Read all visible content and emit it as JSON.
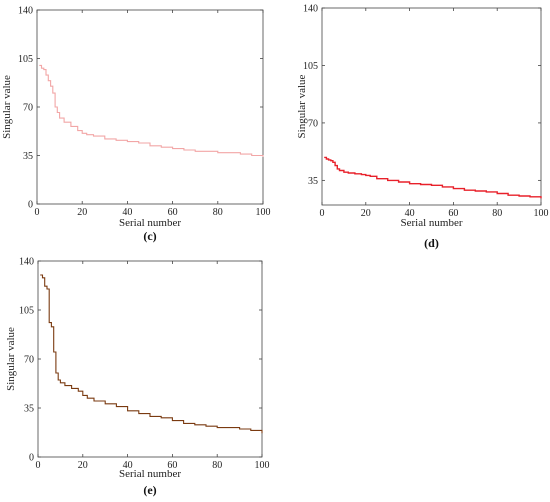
{
  "chart_data": [
    {
      "type": "line",
      "panel_label": "(c)",
      "xlabel": "Serial number",
      "ylabel": "Singular value",
      "xlim": [
        0,
        100
      ],
      "ylim": [
        0,
        140
      ],
      "xticks": [
        0,
        20,
        40,
        60,
        80,
        100
      ],
      "yticks": [
        0,
        35,
        70,
        105,
        140
      ],
      "color": "#f2a6a6",
      "grid": false,
      "series": [
        {
          "x": [
            1,
            2,
            3,
            4,
            5,
            6,
            7,
            8,
            9,
            10,
            12,
            15,
            18,
            20,
            22,
            25,
            30,
            35,
            40,
            45,
            50,
            55,
            60,
            65,
            70,
            75,
            80,
            85,
            90,
            95,
            100
          ],
          "y": [
            100,
            98,
            97,
            93,
            89,
            85,
            80,
            70,
            66,
            62,
            59,
            56,
            53,
            51,
            50,
            49,
            47,
            46,
            45,
            44,
            42,
            41,
            40,
            39,
            38,
            38,
            37,
            37,
            36,
            35,
            34
          ]
        }
      ]
    },
    {
      "type": "line",
      "panel_label": "(d)",
      "xlabel": "Serial number",
      "ylabel": "Singular value",
      "xlim": [
        0,
        100
      ],
      "ylim": [
        20,
        140
      ],
      "xticks": [
        0,
        20,
        40,
        60,
        80,
        100
      ],
      "yticks": [
        35,
        70,
        105,
        140
      ],
      "color": "#e8202a",
      "grid": false,
      "series": [
        {
          "x": [
            1,
            2,
            3,
            4,
            5,
            6,
            7,
            8,
            10,
            12,
            15,
            18,
            20,
            22,
            25,
            30,
            35,
            40,
            45,
            50,
            55,
            60,
            65,
            70,
            75,
            80,
            85,
            90,
            95,
            100
          ],
          "y": [
            49,
            48,
            47.5,
            47,
            46,
            44,
            42,
            41,
            40,
            39.5,
            39,
            38.5,
            38,
            37.5,
            36,
            35,
            34,
            33,
            32.5,
            32,
            31,
            30,
            29,
            28.5,
            28,
            27,
            26,
            25.5,
            25,
            24
          ]
        }
      ]
    },
    {
      "type": "line",
      "panel_label": "(e)",
      "xlabel": "Serial number",
      "ylabel": "Singular value",
      "xlim": [
        0,
        100
      ],
      "ylim": [
        0,
        140
      ],
      "xticks": [
        0,
        20,
        40,
        60,
        80,
        100
      ],
      "yticks": [
        0,
        35,
        70,
        105,
        140
      ],
      "color": "#7a3a10",
      "grid": false,
      "series": [
        {
          "x": [
            1,
            2,
            3,
            4,
            5,
            6,
            7,
            8,
            9,
            10,
            12,
            15,
            18,
            20,
            22,
            25,
            30,
            35,
            40,
            45,
            50,
            55,
            60,
            65,
            70,
            75,
            80,
            85,
            90,
            95,
            100
          ],
          "y": [
            130,
            128,
            122,
            120,
            96,
            93,
            75,
            60,
            55,
            53,
            51,
            49,
            47,
            44,
            42,
            40,
            38,
            36,
            33,
            31,
            29,
            28,
            26,
            24,
            23,
            22,
            21,
            21,
            20,
            19,
            17
          ]
        }
      ]
    }
  ]
}
